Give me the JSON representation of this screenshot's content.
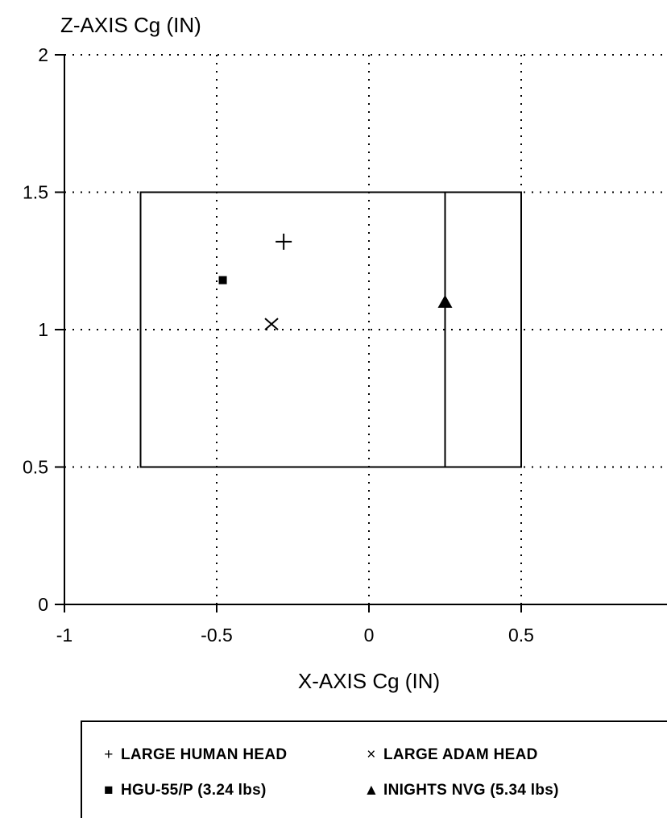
{
  "chart_data": {
    "type": "scatter",
    "title": "",
    "ylabel": "Z-AXIS Cg  (IN)",
    "xlabel": "X-AXIS Cg  (IN)",
    "xlim": [
      -1,
      1
    ],
    "ylim": [
      0,
      2
    ],
    "x_ticks": [
      "-1",
      "-0.5",
      "0",
      "0.5"
    ],
    "y_ticks": [
      "0",
      "0.5",
      "1",
      "1.5",
      "2"
    ],
    "grid": "dotted",
    "envelope": {
      "x": [
        -0.75,
        0.5
      ],
      "z": [
        0.5,
        1.5
      ],
      "divider_x": 0.25
    },
    "series": [
      {
        "name": "LARGE HUMAN HEAD",
        "marker": "plus",
        "points": [
          [
            -0.28,
            1.32
          ]
        ]
      },
      {
        "name": "LARGE ADAM HEAD",
        "marker": "x",
        "points": [
          [
            -0.32,
            1.02
          ]
        ]
      },
      {
        "name": "HGU-55/P (3.24 lbs)",
        "marker": "square",
        "points": [
          [
            -0.48,
            1.18
          ]
        ]
      },
      {
        "name": "INIGHTS NVG (5.34 lbs)",
        "marker": "triangle",
        "points": [
          [
            0.25,
            1.1
          ]
        ]
      }
    ],
    "legend_position": "bottom"
  }
}
